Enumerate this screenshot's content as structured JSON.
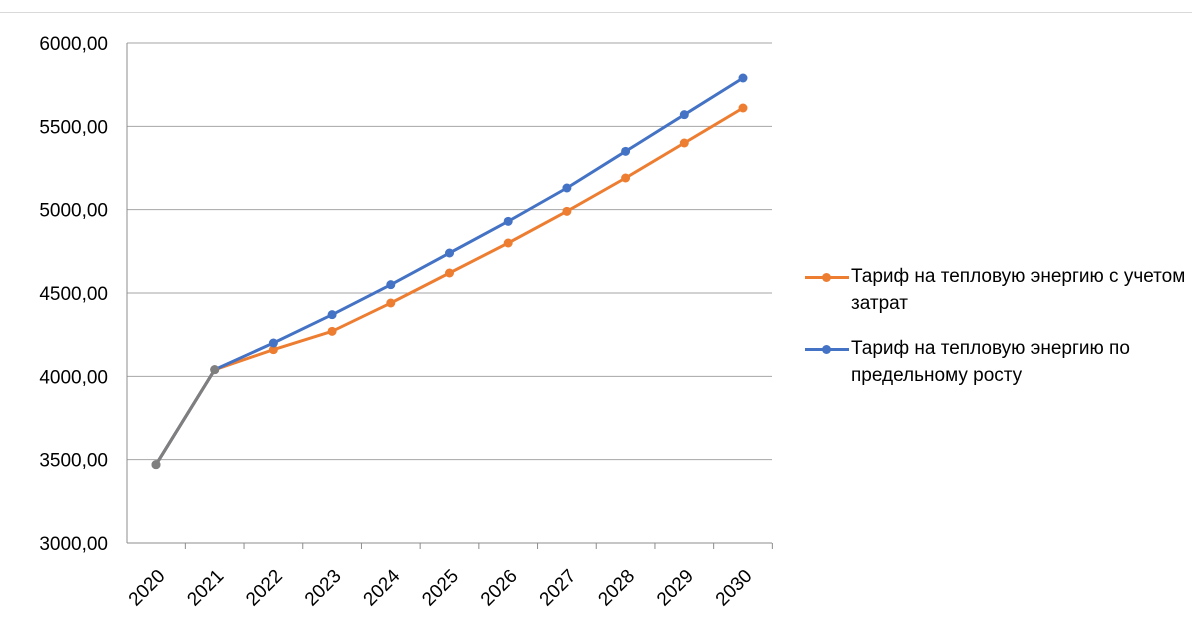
{
  "chart_data": {
    "type": "line",
    "title": "",
    "xlabel": "",
    "ylabel": "",
    "categories": [
      "2020",
      "2021",
      "2022",
      "2023",
      "2024",
      "2025",
      "2026",
      "2027",
      "2028",
      "2029",
      "2030"
    ],
    "y_ticks": [
      "3000,00",
      "3500,00",
      "4000,00",
      "4500,00",
      "5000,00",
      "5500,00",
      "6000,00"
    ],
    "ylim": [
      3000,
      6000
    ],
    "grid": true,
    "legend_position": "right",
    "series": [
      {
        "name": "Тариф на тепловую энергию с учетом затрат",
        "color": "#ED7D31",
        "values": [
          3470,
          4040,
          4160,
          4270,
          4440,
          4620,
          4800,
          4990,
          5190,
          5400,
          5610
        ]
      },
      {
        "name": "Тариф на тепловую энергию по предельному росту",
        "color": "#4472C4",
        "values": [
          3470,
          4040,
          4200,
          4370,
          4550,
          4740,
          4930,
          5130,
          5350,
          5570,
          5790
        ]
      }
    ],
    "shared_segment_color": "#7F7F7F"
  }
}
